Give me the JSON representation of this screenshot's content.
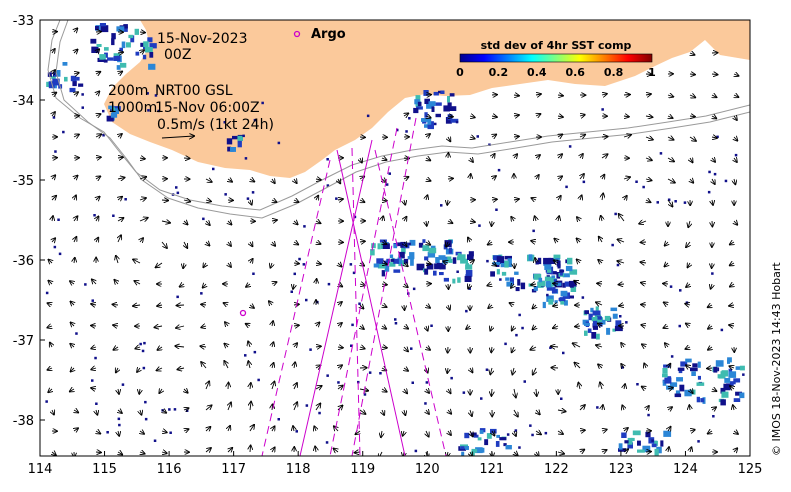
{
  "map": {
    "lon_range": [
      114,
      125
    ],
    "lat_range": [
      -38.5,
      -33
    ],
    "x_ticks": [
      "114",
      "115",
      "116",
      "117",
      "118",
      "119",
      "120",
      "121",
      "122",
      "123",
      "124",
      "125"
    ],
    "y_ticks": [
      "-33",
      "-34",
      "-35",
      "-36",
      "-37",
      "-38"
    ],
    "land_color": "#fbc99b",
    "sst_patch_colors": [
      "#10108a",
      "#1f3cc0",
      "#2b86d6",
      "#3fbcb0"
    ],
    "track_color": "#cc00cc",
    "isobath_color": "#9a9a9a"
  },
  "annotations": {
    "date": "15-Nov-2023",
    "time": "00Z",
    "depth_200": "200m",
    "product": "NRT00 GSL",
    "depth_1000": "1000m",
    "product_time": "15-Nov 06:00Z",
    "scale_arrow": "0.5m/s (1kt 24h)",
    "argo_label": "Argo"
  },
  "colorbar": {
    "title": "std dev of 4hr SST comp",
    "ticks": [
      "0",
      "0.2",
      "0.4",
      "0.6",
      "0.8",
      "1"
    ]
  },
  "credit": "© IMOS 18-Nov-2023 14:43 Hobart"
}
